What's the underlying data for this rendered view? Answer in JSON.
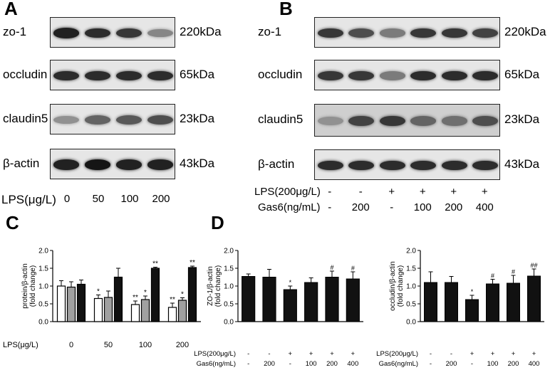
{
  "panels": {
    "A": {
      "letter": "A",
      "rows": [
        {
          "protein": "zo-1",
          "kda": "220kDa",
          "intensity": [
            0.9,
            0.85,
            0.8,
            0.45
          ]
        },
        {
          "protein": "occludin",
          "kda": "65kDa",
          "intensity": [
            0.85,
            0.85,
            0.85,
            0.85
          ]
        },
        {
          "protein": "claudin5",
          "kda": "23kDa",
          "intensity": [
            0.4,
            0.6,
            0.65,
            0.7
          ]
        },
        {
          "protein": "β-actin",
          "kda": "43kDa",
          "intensity": [
            0.9,
            0.95,
            0.9,
            0.9
          ]
        }
      ],
      "lps_label": "LPS(μg/L)",
      "lps_values": [
        "0",
        "50",
        "100",
        "200"
      ]
    },
    "B": {
      "letter": "B",
      "rows": [
        {
          "protein": "zo-1",
          "kda": "220kDa",
          "intensity": [
            0.8,
            0.7,
            0.5,
            0.8,
            0.8,
            0.75
          ]
        },
        {
          "protein": "occludin",
          "kda": "65kDa",
          "intensity": [
            0.8,
            0.8,
            0.5,
            0.85,
            0.85,
            0.85
          ]
        },
        {
          "protein": "claudin5",
          "kda": "23kDa",
          "intensity": [
            0.4,
            0.75,
            0.8,
            0.6,
            0.55,
            0.7
          ]
        },
        {
          "protein": "β-actin",
          "kda": "43kDa",
          "intensity": [
            0.85,
            0.85,
            0.85,
            0.85,
            0.85,
            0.85
          ]
        }
      ],
      "lps_label": "LPS(200μg/L)",
      "lps_values": [
        "-",
        "-",
        "+",
        "+",
        "+",
        "+"
      ],
      "gas6_label": "Gas6(ng/mL)",
      "gas6_values": [
        "-",
        "200",
        "-",
        "100",
        "200",
        "400"
      ]
    },
    "C": {
      "letter": "C"
    },
    "D": {
      "letter": "D"
    }
  },
  "chart_data": [
    {
      "type": "bar",
      "panel": "C",
      "ylabel": "protein/β-actin (fold change)",
      "xlabel": "LPS(μg/L)",
      "categories": [
        "0",
        "50",
        "100",
        "200"
      ],
      "ylim": [
        0,
        2.0
      ],
      "yticks": [
        "0.0",
        "0.5",
        "1.0",
        "1.5",
        "2.0"
      ],
      "series": [
        {
          "values": [
            1.0,
            0.65,
            0.48,
            0.4
          ],
          "errors": [
            0.15,
            0.1,
            0.1,
            0.12
          ],
          "color": "#ffffff",
          "marks": [
            "",
            "*",
            "**",
            "**"
          ]
        },
        {
          "values": [
            0.97,
            0.68,
            0.62,
            0.6
          ],
          "errors": [
            0.15,
            0.18,
            0.1,
            0.07
          ],
          "color": "#a0a0a0",
          "marks": [
            "",
            "",
            "*",
            "*"
          ]
        },
        {
          "values": [
            1.05,
            1.25,
            1.5,
            1.52
          ],
          "errors": [
            0.12,
            0.25,
            0.03,
            0.04
          ],
          "color": "#111111",
          "marks": [
            "",
            "",
            "**",
            "**"
          ]
        }
      ]
    },
    {
      "type": "bar",
      "panel": "D-left",
      "ylabel": "ZO-1/β-actin (fold change)",
      "ylim": [
        0,
        2.0
      ],
      "yticks": [
        "0.0",
        "0.5",
        "1.0",
        "1.5",
        "2.0"
      ],
      "row_labels": [
        "LPS(200μg/L)",
        "Gas6(ng/mL)"
      ],
      "lps_values": [
        "-",
        "-",
        "+",
        "+",
        "+",
        "+"
      ],
      "gas6_values": [
        "-",
        "200",
        "-",
        "100",
        "200",
        "400"
      ],
      "values": [
        1.27,
        1.25,
        0.9,
        1.1,
        1.25,
        1.2
      ],
      "errors": [
        0.07,
        0.22,
        0.1,
        0.13,
        0.17,
        0.2
      ],
      "marks": [
        "",
        "",
        "*",
        "",
        "#",
        "#"
      ],
      "color": "#111111"
    },
    {
      "type": "bar",
      "panel": "D-right",
      "ylabel": "occludin/β-actin (fold change)",
      "ylim": [
        0,
        2.0
      ],
      "yticks": [
        "0.0",
        "0.5",
        "1.0",
        "1.5",
        "2.0"
      ],
      "row_labels": [
        "LPS(200μg/L)",
        "Gas6(ng/mL)"
      ],
      "lps_values": [
        "-",
        "-",
        "+",
        "+",
        "+",
        "+"
      ],
      "gas6_values": [
        "-",
        "200",
        "-",
        "100",
        "200",
        "400"
      ],
      "values": [
        1.1,
        1.1,
        0.62,
        1.06,
        1.08,
        1.28
      ],
      "errors": [
        0.3,
        0.17,
        0.12,
        0.13,
        0.22,
        0.2
      ],
      "marks": [
        "",
        "",
        "*",
        "#",
        "#",
        "##"
      ],
      "color": "#111111"
    }
  ]
}
